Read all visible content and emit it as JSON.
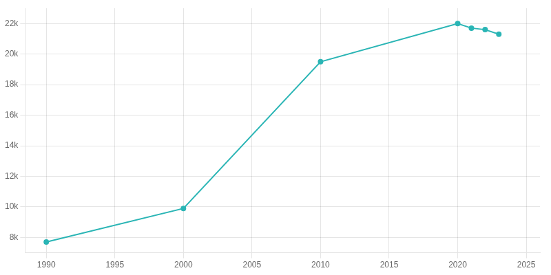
{
  "chart_data": {
    "type": "line",
    "x": [
      1990,
      2000,
      2010,
      2020,
      2021,
      2022,
      2023
    ],
    "values": [
      7700,
      9900,
      19500,
      22000,
      21700,
      21600,
      21300
    ],
    "color": "#2ab5b5",
    "marker": "circle",
    "xlim": [
      1988.5,
      2026
    ],
    "xticks": [
      1990,
      1995,
      2000,
      2005,
      2010,
      2015,
      2020,
      2025
    ],
    "ylim": [
      7000,
      23000
    ],
    "yticks": [
      {
        "value": 8000,
        "label": "8k"
      },
      {
        "value": 10000,
        "label": "10k"
      },
      {
        "value": 12000,
        "label": "12k"
      },
      {
        "value": 14000,
        "label": "14k"
      },
      {
        "value": 16000,
        "label": "16k"
      },
      {
        "value": 18000,
        "label": "18k"
      },
      {
        "value": 20000,
        "label": "20k"
      },
      {
        "value": 22000,
        "label": "22k"
      }
    ],
    "grid": true
  }
}
